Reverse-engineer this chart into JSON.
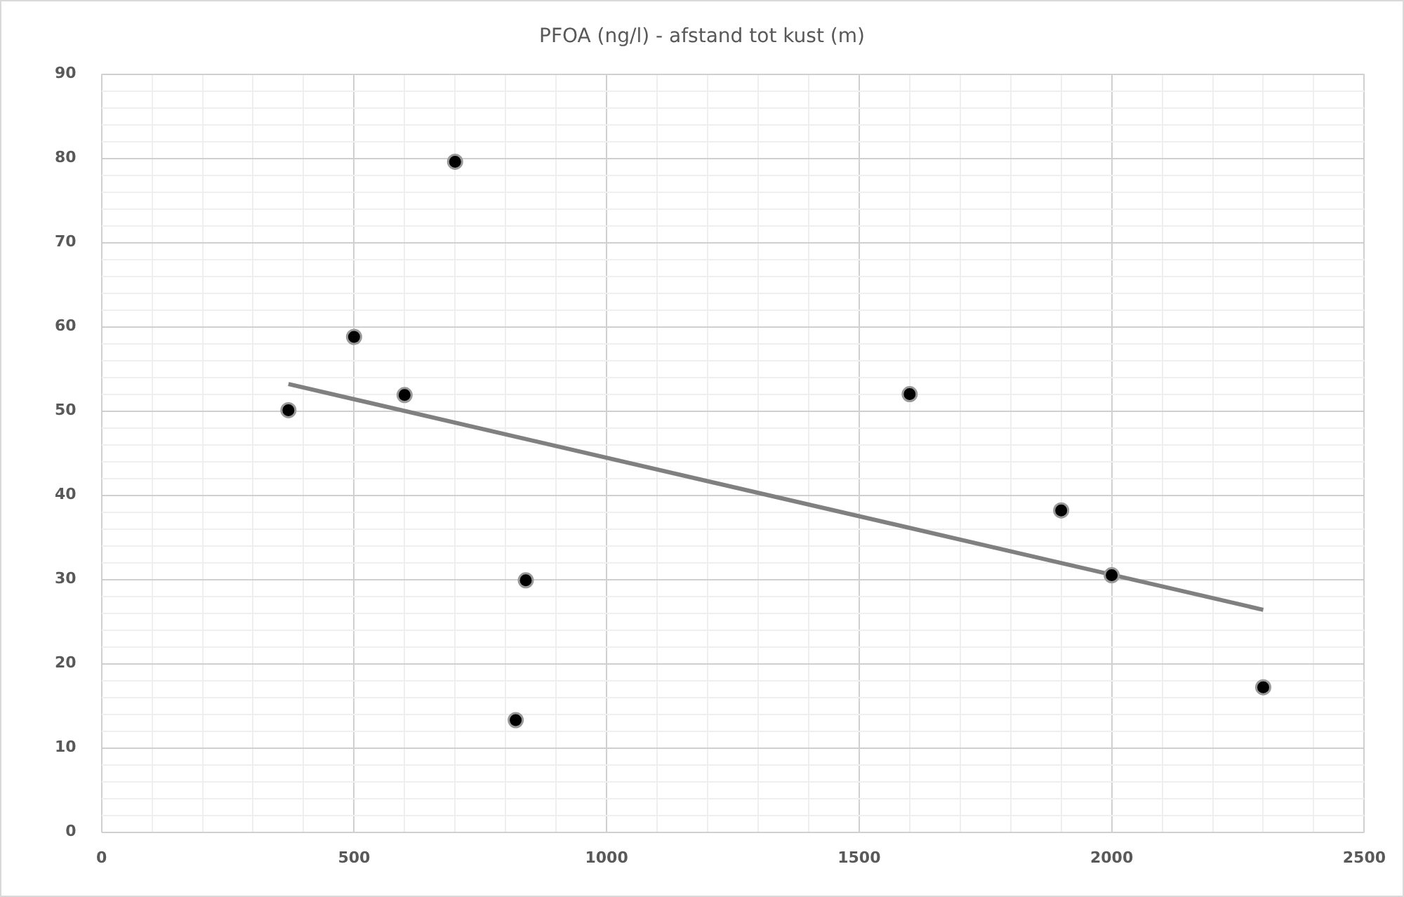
{
  "chart_data": {
    "type": "scatter",
    "title": "PFOA (ng/l) - afstand tot kust (m)",
    "series": [
      {
        "type": "scatter",
        "color": "#000000",
        "marker": "circle",
        "x": [
          370,
          500,
          600,
          700,
          840,
          820,
          1600,
          1900,
          2000,
          2300
        ],
        "values": [
          50.1,
          58.8,
          51.9,
          79.6,
          29.9,
          13.3,
          52.0,
          38.2,
          30.5,
          17.2
        ]
      },
      {
        "type": "line",
        "color": "#808080",
        "marker": "none",
        "x": [
          370,
          2300
        ],
        "values": [
          53.2,
          26.4
        ]
      }
    ],
    "xlim": [
      0,
      2500
    ],
    "xticks": [
      0,
      {
        "value": 100,
        "label": null
      },
      {
        "value": 200,
        "label": null
      },
      {
        "value": 300,
        "label": null
      },
      {
        "value": 400,
        "label": null
      },
      500,
      {
        "value": 600,
        "label": null
      },
      {
        "value": 700,
        "label": null
      },
      {
        "value": 800,
        "label": null
      },
      {
        "value": 900,
        "label": null
      },
      1000,
      {
        "value": 1100,
        "label": null
      },
      {
        "value": 1200,
        "label": null
      },
      {
        "value": 1300,
        "label": null
      },
      {
        "value": 1400,
        "label": null
      },
      1500,
      {
        "value": 1600,
        "label": null
      },
      {
        "value": 1700,
        "label": null
      },
      {
        "value": 1800,
        "label": null
      },
      {
        "value": 1900,
        "label": null
      },
      2000,
      {
        "value": 2100,
        "label": null
      },
      {
        "value": 2200,
        "label": null
      },
      {
        "value": 2300,
        "label": null
      },
      {
        "value": 2400,
        "label": null
      },
      2500
    ],
    "ylim": [
      0,
      90
    ],
    "yticks": [
      0,
      {
        "value": 2,
        "label": null
      },
      {
        "value": 4,
        "label": null
      },
      {
        "value": 6,
        "label": null
      },
      {
        "value": 8,
        "label": null
      },
      10,
      {
        "value": 12,
        "label": null
      },
      {
        "value": 14,
        "label": null
      },
      {
        "value": 16,
        "label": null
      },
      {
        "value": 18,
        "label": null
      },
      20,
      {
        "value": 22,
        "label": null
      },
      {
        "value": 24,
        "label": null
      },
      {
        "value": 26,
        "label": null
      },
      {
        "value": 28,
        "label": null
      },
      30,
      {
        "value": 32,
        "label": null
      },
      {
        "value": 34,
        "label": null
      },
      {
        "value": 36,
        "label": null
      },
      {
        "value": 38,
        "label": null
      },
      40,
      {
        "value": 42,
        "label": null
      },
      {
        "value": 44,
        "label": null
      },
      {
        "value": 46,
        "label": null
      },
      {
        "value": 48,
        "label": null
      },
      50,
      {
        "value": 52,
        "label": null
      },
      {
        "value": 54,
        "label": null
      },
      {
        "value": 56,
        "label": null
      },
      {
        "value": 58,
        "label": null
      },
      60,
      {
        "value": 62,
        "label": null
      },
      {
        "value": 64,
        "label": null
      },
      {
        "value": 66,
        "label": null
      },
      {
        "value": 68,
        "label": null
      },
      70,
      {
        "value": 72,
        "label": null
      },
      {
        "value": 74,
        "label": null
      },
      {
        "value": 76,
        "label": null
      },
      {
        "value": 78,
        "label": null
      },
      80,
      {
        "value": 82,
        "label": null
      },
      {
        "value": 84,
        "label": null
      },
      {
        "value": 86,
        "label": null
      },
      {
        "value": 88,
        "label": null
      },
      90
    ],
    "grid": true,
    "legend": false
  }
}
